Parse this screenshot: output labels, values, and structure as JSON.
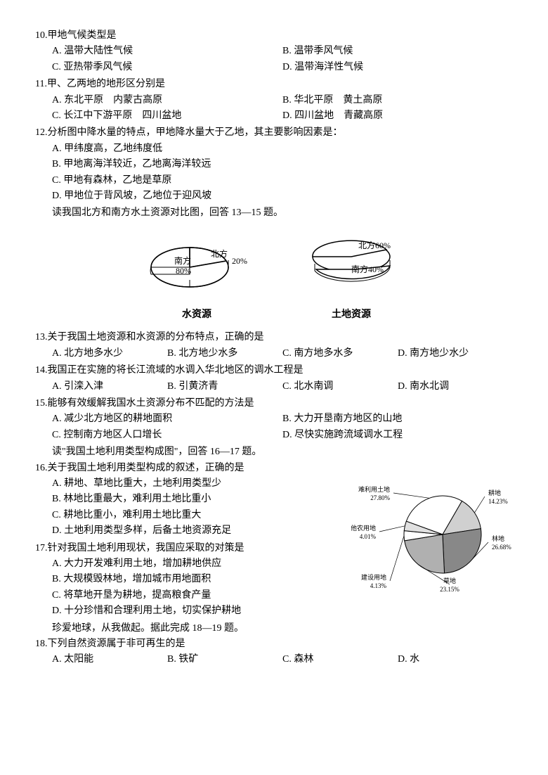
{
  "q10": {
    "num": "10.",
    "text": "甲地气候类型是",
    "opts": {
      "A": "A. 温带大陆性气候",
      "B": "B. 温带季风气候",
      "C": "C. 亚热带季风气候",
      "D": "D. 温带海洋性气候"
    }
  },
  "q11": {
    "num": "11.",
    "text": "甲、乙两地的地形区分别是",
    "opts": {
      "A": "A. 东北平原　内蒙古高原",
      "B": "B. 华北平原　黄土高原",
      "C": "C. 长江中下游平原　四川盆地",
      "D": "D. 四川盆地　青藏高原"
    }
  },
  "q12": {
    "num": "12.",
    "text": "分析图中降水量的特点，甲地降水量大于乙地，其主要影响因素是：",
    "opts": {
      "A": "A. 甲纬度高，乙地纬度低",
      "B": "B. 甲地离海洋较近，乙地离海洋较远",
      "C": "C. 甲地有森林，乙地是草原",
      "D": "D. 甲地位于背风坡，乙地位于迎风坡"
    }
  },
  "intro1": "读我国北方和南方水土资源对比图，回答 13—15 题。",
  "chart1": {
    "water": {
      "title": "水资源",
      "south_label": "南方",
      "south_pct_label": "80%",
      "south_pct": 80,
      "north_label": "北方",
      "north_pct_label": "20%",
      "north_pct": 20,
      "colors": {
        "south": "#ffffff",
        "north": "#ffffff",
        "stroke": "#000000"
      }
    },
    "land": {
      "title": "土地资源",
      "north_label": "北方60%",
      "north_pct": 60,
      "south_label": "南方40%",
      "south_pct": 40,
      "colors": {
        "south": "#ffffff",
        "north": "#ffffff",
        "stroke": "#000000"
      }
    }
  },
  "q13": {
    "num": "13.",
    "text": "关于我国土地资源和水资源的分布特点，正确的是",
    "opts": {
      "A": "A. 北方地多水少",
      "B": "B. 北方地少水多",
      "C": "C. 南方地多水多",
      "D": "D. 南方地少水少"
    }
  },
  "q14": {
    "num": "14.",
    "text": "我国正在实施的将长江流域的水调入华北地区的调水工程是",
    "opts": {
      "A": "A. 引滦入津",
      "B": "B. 引黄济青",
      "C": "C. 北水南调",
      "D": "D. 南水北调"
    }
  },
  "q15": {
    "num": "15.",
    "text": "能够有效缓解我国水土资源分布不匹配的方法是",
    "opts": {
      "A": "A. 减少北方地区的耕地面积",
      "B": "B. 大力开垦南方地区的山地",
      "C": "C. 控制南方地区人口增长",
      "D": "D. 尽快实施跨流域调水工程"
    }
  },
  "intro2": "读\"我国土地利用类型构成图\"，回答 16—17 题。",
  "q16": {
    "num": "16.",
    "text": "关于我国土地利用类型构成的叙述，正确的是",
    "opts": {
      "A": "A. 耕地、草地比重大，土地利用类型少",
      "B": "B. 林地比重最大，难利用土地比重小",
      "C": "C. 耕地比重小，难利用土地比重大",
      "D": "D. 土地利用类型多样，后备土地资源充足"
    }
  },
  "q17": {
    "num": "17.",
    "text": "针对我国土地利用现状，我国应采取的对策是",
    "opts": {
      "A": "A. 大力开发难利用土地，增加耕地供应",
      "B": "B. 大规模毁林地，增加城市用地面积",
      "C": "C. 将草地开垦为耕地，提高粮食产量",
      "D": "D. 十分珍惜和合理利用土地，切实保护耕地"
    }
  },
  "intro3": "珍爱地球，从我做起。据此完成 18—19 题。",
  "q18": {
    "num": "18.",
    "text": "下列自然资源属于非可再生的是",
    "opts": {
      "A": "A. 太阳能",
      "B": "B. 铁矿",
      "C": "C. 森林",
      "D": "D. 水"
    }
  },
  "chart2": {
    "type": "pie",
    "slices": [
      {
        "label": "难利用土地",
        "pct_label": "27.80%",
        "pct": 27.8,
        "color": "#ffffff"
      },
      {
        "label": "耕地",
        "pct_label": "14.23%",
        "pct": 14.23,
        "color": "#d0d0d0"
      },
      {
        "label": "林地",
        "pct_label": "26.68%",
        "pct": 26.68,
        "color": "#888888"
      },
      {
        "label": "草地",
        "pct_label": "23.15%",
        "pct": 23.15,
        "color": "#b0b0b0"
      },
      {
        "label": "建设用地",
        "pct_label": "4.13%",
        "pct": 4.13,
        "color": "#ffffff"
      },
      {
        "label": "其他农用地",
        "pct_label": "4.01%",
        "pct": 4.01,
        "color": "#e0e0e0"
      }
    ],
    "stroke": "#000000",
    "label_fontsize": 9
  }
}
